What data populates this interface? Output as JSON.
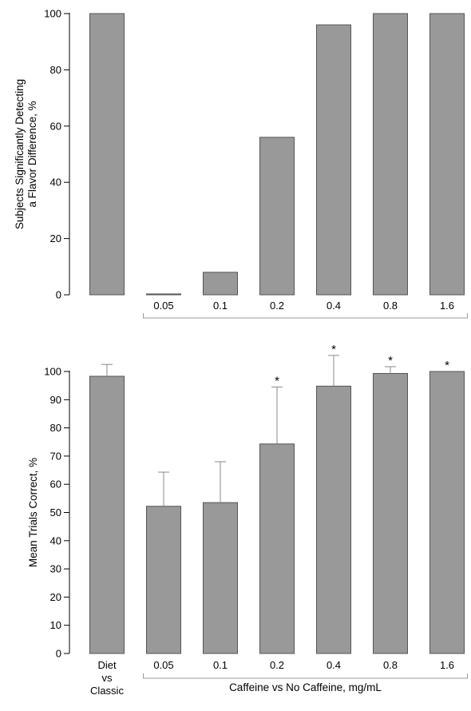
{
  "chart_data": [
    {
      "type": "bar",
      "categories": [
        "",
        "0.05",
        "0.1",
        "0.2",
        "0.4",
        "0.8",
        "1.6"
      ],
      "values": [
        100,
        0.3,
        8,
        56,
        96,
        100,
        100
      ],
      "ylabel_lines": [
        "Subjects Significantly Detecting",
        "a Flavor Difference, %"
      ],
      "ylim": [
        0,
        100
      ],
      "yticks": [
        0,
        20,
        40,
        60,
        80,
        100
      ],
      "grid": false,
      "group_bracket": {
        "from_index": 1,
        "to_index": 6,
        "label": ""
      }
    },
    {
      "type": "bar",
      "categories": [
        "Diet\nvs\nClassic",
        "0.05",
        "0.1",
        "0.2",
        "0.4",
        "0.8",
        "1.6"
      ],
      "values": [
        98.3,
        52.2,
        53.5,
        74.3,
        94.8,
        99.3,
        100
      ],
      "error_upper": [
        102.5,
        64.3,
        68.0,
        94.5,
        105.7,
        101.7,
        100
      ],
      "significant": [
        false,
        false,
        false,
        true,
        true,
        true,
        true
      ],
      "significance_marker": "*",
      "ylabel_lines": [
        "Mean Trials Correct, %"
      ],
      "ylim": [
        0,
        100
      ],
      "yticks": [
        0,
        10,
        20,
        30,
        40,
        50,
        60,
        70,
        80,
        90,
        100
      ],
      "grid": false,
      "group_bracket": {
        "from_index": 1,
        "to_index": 6,
        "label": "Caffeine vs No Caffeine, mg/mL"
      }
    }
  ]
}
